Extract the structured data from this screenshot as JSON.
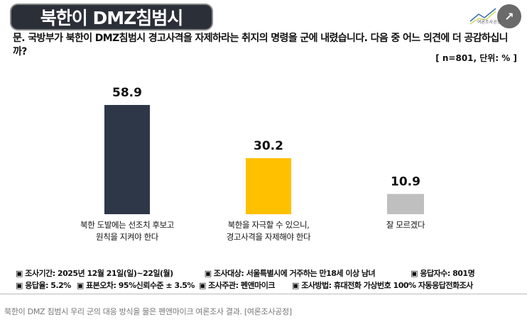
{
  "title": "북한이 DMZ침범시",
  "logo_text": "여론조사공정",
  "expand_icon": "expand-icon",
  "question": "문. 국방부가 북한이 DMZ침범시 경고사격을 자제하라는 취지의 명령을 군에 내렸습니다. 다음 중 어느 의견에 더 공감하십니까?",
  "unit": "[ n=801, 단위: % ]",
  "chart_data": {
    "type": "bar",
    "categories": [
      "북한 도발에는 선조치 후보고 원칙을 지켜야 한다",
      "북한을 자극할 수 있으니, 경고사격을 자제해야 한다",
      "잘 모르겠다"
    ],
    "category_lines": [
      [
        "북한 도발에는 선조치 후보고",
        "원칙을 지켜야 한다"
      ],
      [
        "북한을 자극할 수 있으니,",
        "경고사격을 자제해야 한다"
      ],
      [
        "잘 모르겠다"
      ]
    ],
    "values": [
      58.9,
      30.2,
      10.9
    ],
    "value_labels": [
      "58.9",
      "30.2",
      "10.9"
    ],
    "colors": [
      "#2d3748",
      "#ffc000",
      "#bfbfbf"
    ],
    "ylim": [
      0,
      65
    ],
    "grid": false
  },
  "footer": [
    [
      "▣ 조사기간: 2025년 12월 21일(일)~22일(월)",
      "▣ 조사대상: 서울특별시에 거주하는 만18세 이상 남녀",
      "▣ 응답자수: 801명"
    ],
    [
      "▣ 응답율: 5.2%",
      "▣ 표본오차: 95%신뢰수준 ± 3.5%",
      "▣ 조사주관: 펜앤마이크",
      "▣ 조사방법: 휴대전화 가상번호 100% 자동응답전화조사"
    ]
  ],
  "caption": "북한이 DMZ 침범시 우리 군의 대응 방식을 물은 펜앤마이크 여론조사 결과. [여론조사공정]"
}
